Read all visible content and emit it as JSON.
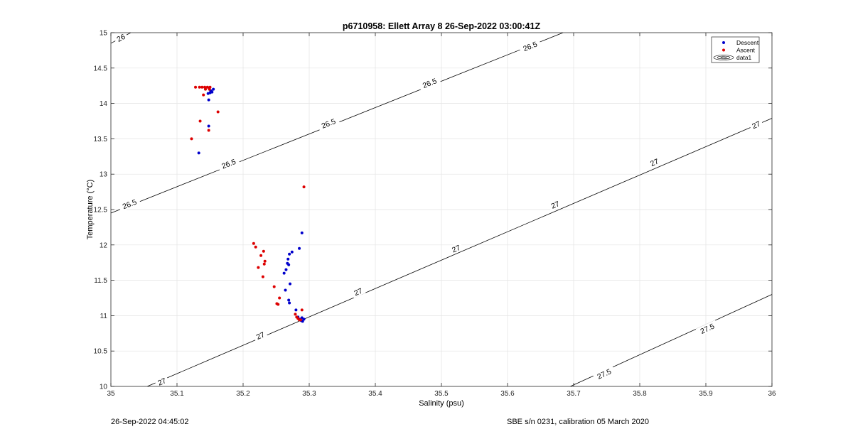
{
  "chart_data": {
    "type": "scatter",
    "title": "p6710958: Ellett Array 8 26-Sep-2022 03:00:41Z",
    "xlabel": "Salinity (psu)",
    "ylabel": "Temperature (°C)",
    "xlim": [
      35,
      36
    ],
    "ylim": [
      10,
      15
    ],
    "xticks": [
      "35",
      "35.1",
      "35.2",
      "35.3",
      "35.4",
      "35.5",
      "35.6",
      "35.7",
      "35.8",
      "35.9",
      "36"
    ],
    "yticks": [
      "10",
      "10.5",
      "11",
      "11.5",
      "12",
      "12.5",
      "13",
      "13.5",
      "14",
      "14.5",
      "15"
    ],
    "grid": true,
    "legend": {
      "placement": "top-right",
      "entries": [
        "Descent",
        "Ascent",
        "data1"
      ]
    },
    "contours": [
      {
        "level": "26",
        "start": [
          35.0,
          14.85
        ],
        "end": [
          35.03,
          15.0
        ],
        "labels": [
          [
            35.015,
            14.93
          ]
        ]
      },
      {
        "level": "26.5",
        "start": [
          35.0,
          12.45
        ],
        "end": [
          35.684,
          15.0
        ],
        "labels": [
          [
            35.028,
            12.58
          ],
          [
            35.178,
            13.15
          ],
          [
            35.329,
            13.72
          ],
          [
            35.482,
            14.29
          ],
          [
            35.634,
            14.81
          ]
        ]
      },
      {
        "level": "27",
        "start": [
          35.055,
          10.0
        ],
        "end": [
          36.0,
          13.79
        ],
        "labels": [
          [
            35.077,
            10.07
          ],
          [
            35.226,
            10.72
          ],
          [
            35.374,
            11.34
          ],
          [
            35.522,
            11.95
          ],
          [
            35.672,
            12.57
          ],
          [
            35.822,
            13.17
          ],
          [
            35.976,
            13.7
          ]
        ]
      },
      {
        "level": "27.5",
        "start": [
          35.695,
          10.0
        ],
        "end": [
          36.0,
          11.3
        ],
        "labels": [
          [
            35.746,
            10.18
          ],
          [
            35.902,
            10.82
          ]
        ]
      }
    ],
    "series": [
      {
        "name": "Descent",
        "color": "#0000cc",
        "points": [
          [
            35.133,
            13.3
          ],
          [
            35.148,
            13.68
          ],
          [
            35.148,
            14.05
          ],
          [
            35.15,
            14.15
          ],
          [
            35.151,
            14.18
          ],
          [
            35.152,
            14.17
          ],
          [
            35.153,
            14.16
          ],
          [
            35.155,
            14.2
          ],
          [
            35.149,
            14.22
          ],
          [
            35.147,
            14.14
          ],
          [
            35.289,
            12.17
          ],
          [
            35.285,
            11.95
          ],
          [
            35.274,
            11.9
          ],
          [
            35.27,
            11.87
          ],
          [
            35.268,
            11.8
          ],
          [
            35.269,
            11.72
          ],
          [
            35.267,
            11.74
          ],
          [
            35.265,
            11.65
          ],
          [
            35.262,
            11.6
          ],
          [
            35.271,
            11.45
          ],
          [
            35.264,
            11.36
          ],
          [
            35.269,
            11.22
          ],
          [
            35.27,
            11.18
          ],
          [
            35.28,
            11.08
          ],
          [
            35.283,
            10.98
          ],
          [
            35.286,
            10.95
          ],
          [
            35.288,
            10.93
          ],
          [
            35.29,
            10.92
          ],
          [
            35.292,
            10.95
          ],
          [
            35.289,
            10.97
          ]
        ]
      },
      {
        "name": "Ascent",
        "color": "#dd0000",
        "points": [
          [
            35.128,
            14.23
          ],
          [
            35.134,
            14.23
          ],
          [
            35.138,
            14.23
          ],
          [
            35.142,
            14.23
          ],
          [
            35.146,
            14.23
          ],
          [
            35.15,
            14.23
          ],
          [
            35.143,
            14.2
          ],
          [
            35.149,
            14.2
          ],
          [
            35.14,
            14.12
          ],
          [
            35.162,
            13.88
          ],
          [
            35.148,
            13.62
          ],
          [
            35.135,
            13.75
          ],
          [
            35.122,
            13.5
          ],
          [
            35.292,
            12.82
          ],
          [
            35.216,
            12.02
          ],
          [
            35.219,
            11.97
          ],
          [
            35.231,
            11.91
          ],
          [
            35.227,
            11.85
          ],
          [
            35.233,
            11.77
          ],
          [
            35.232,
            11.73
          ],
          [
            35.223,
            11.68
          ],
          [
            35.23,
            11.55
          ],
          [
            35.247,
            11.41
          ],
          [
            35.255,
            11.25
          ],
          [
            35.251,
            11.17
          ],
          [
            35.253,
            11.16
          ],
          [
            35.289,
            11.08
          ],
          [
            35.279,
            11.02
          ],
          [
            35.281,
            10.98
          ],
          [
            35.283,
            10.96
          ],
          [
            35.285,
            10.94
          ],
          [
            35.287,
            10.94
          ]
        ]
      }
    ]
  },
  "footer": {
    "left": "26-Sep-2022 04:45:02",
    "right": "SBE s/n 0231, calibration 05 March 2020"
  }
}
